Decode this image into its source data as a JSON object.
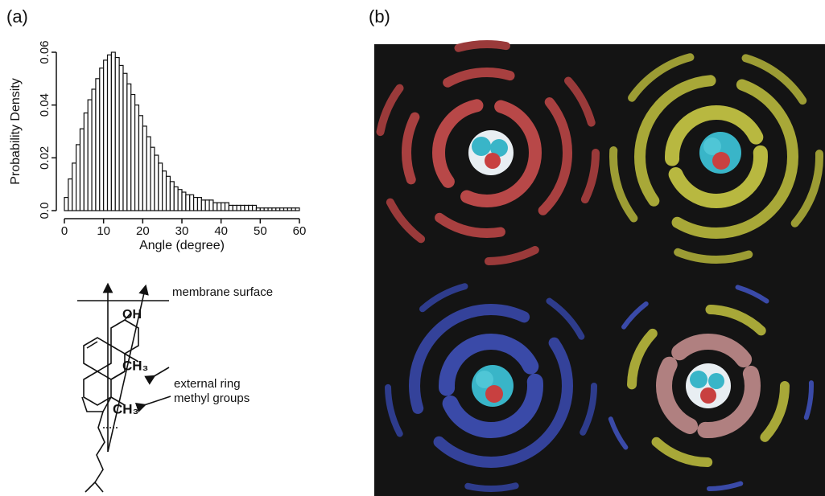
{
  "panel_labels": [
    "(a)",
    "(b)"
  ],
  "chart_data": {
    "type": "histogram",
    "xlabel": "Angle (degree)",
    "ylabel": "Probability Density",
    "bins": [
      0,
      1,
      2,
      3,
      4,
      5,
      6,
      7,
      8,
      9,
      10,
      11,
      12,
      13,
      14,
      15,
      16,
      17,
      18,
      19,
      20,
      21,
      22,
      23,
      24,
      25,
      26,
      27,
      28,
      29,
      30,
      31,
      32,
      33,
      34,
      35,
      36,
      37,
      38,
      39,
      40,
      41,
      42,
      43,
      44,
      45,
      46,
      47,
      48,
      49,
      50,
      51,
      52,
      53,
      54,
      55,
      56,
      57,
      58,
      59,
      60
    ],
    "values": [
      0.005,
      0.012,
      0.018,
      0.025,
      0.031,
      0.037,
      0.042,
      0.046,
      0.05,
      0.054,
      0.057,
      0.059,
      0.06,
      0.058,
      0.055,
      0.052,
      0.048,
      0.044,
      0.04,
      0.036,
      0.032,
      0.028,
      0.024,
      0.021,
      0.018,
      0.015,
      0.013,
      0.011,
      0.009,
      0.008,
      0.007,
      0.006,
      0.006,
      0.005,
      0.005,
      0.004,
      0.004,
      0.004,
      0.003,
      0.003,
      0.003,
      0.003,
      0.002,
      0.002,
      0.002,
      0.002,
      0.002,
      0.002,
      0.002,
      0.001,
      0.001,
      0.001,
      0.001,
      0.001,
      0.001,
      0.001,
      0.001,
      0.001,
      0.001,
      0.001
    ],
    "color": "#ffffff",
    "xlim": [
      0,
      60
    ],
    "xticks": [
      0,
      10,
      20,
      30,
      40,
      50,
      60
    ],
    "ylim": [
      0,
      0.06
    ],
    "yticks": [
      {
        "value": 0,
        "label": "0.0"
      },
      0.02,
      0.04,
      0.06
    ]
  },
  "diagram": {
    "surface_label": "membrane surface",
    "hydroxyl": "OH",
    "methyl_upper": "CH₃",
    "methyl_lower": "CH₃",
    "annotation": [
      "external ring",
      "methyl groups"
    ]
  }
}
